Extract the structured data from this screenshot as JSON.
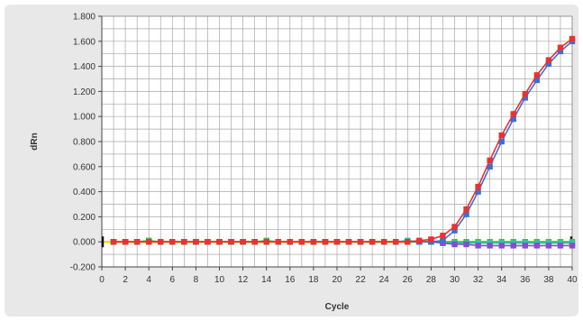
{
  "chart_data": {
    "type": "line",
    "xlabel": "Cycle",
    "ylabel": "dRn",
    "xlim": [
      0,
      40
    ],
    "ylim": [
      -0.2,
      1.8
    ],
    "xticks": [
      0,
      2,
      4,
      6,
      8,
      10,
      12,
      14,
      16,
      18,
      20,
      22,
      24,
      26,
      28,
      30,
      32,
      34,
      36,
      38,
      40
    ],
    "x_tick_labels": [
      "0",
      "2",
      "4",
      "6",
      "8",
      "10",
      "12",
      "14",
      "16",
      "18",
      "20",
      "22",
      "24",
      "26",
      "28",
      "30",
      "32",
      "34",
      "36",
      "38",
      "40"
    ],
    "yticks": [
      -0.2,
      0,
      0.2,
      0.4,
      0.6,
      0.8,
      1.0,
      1.2,
      1.4,
      1.6,
      1.8
    ],
    "y_tick_labels": [
      "-0.200",
      "0.000",
      "0.200",
      "0.400",
      "0.600",
      "0.800",
      "1.000",
      "1.200",
      "1.400",
      "1.600",
      "1.800"
    ],
    "grid": true,
    "legend": "none",
    "threshold": 0.0,
    "colors": {
      "plot_background": "#ffffff",
      "outer_background": "#e8e8e8",
      "grid": "#a8a8a8",
      "threshold": "#e5e500"
    },
    "series": [
      {
        "color": "#e8332f",
        "x": [
          1,
          2,
          3,
          4,
          5,
          6,
          7,
          8,
          9,
          10,
          11,
          12,
          13,
          14,
          15,
          16,
          17,
          18,
          19,
          20,
          21,
          22,
          23,
          24,
          25,
          26,
          27,
          28,
          29,
          30,
          31,
          32,
          33,
          34,
          35,
          36,
          37,
          38,
          39,
          40
        ],
        "values": [
          0,
          0,
          0,
          0,
          0,
          0,
          0,
          0,
          0,
          0,
          0,
          0,
          0,
          0,
          0,
          0,
          0,
          0,
          0,
          0,
          0,
          0,
          0,
          0,
          0,
          0,
          0.01,
          0.02,
          0.05,
          0.12,
          0.26,
          0.44,
          0.65,
          0.85,
          1.02,
          1.18,
          1.33,
          1.45,
          1.55,
          1.62
        ]
      },
      {
        "color": "#3a6fd8",
        "x": [
          1,
          2,
          3,
          4,
          5,
          6,
          7,
          8,
          9,
          10,
          11,
          12,
          13,
          14,
          15,
          16,
          17,
          18,
          19,
          20,
          21,
          22,
          23,
          24,
          25,
          26,
          27,
          28,
          29,
          30,
          31,
          32,
          33,
          34,
          35,
          36,
          37,
          38,
          39,
          40
        ],
        "values": [
          0,
          0,
          0,
          0,
          0,
          0,
          0,
          0,
          0,
          0,
          0,
          0,
          0,
          0,
          0,
          0,
          0,
          0,
          0,
          0,
          0,
          0,
          0,
          0,
          0,
          0,
          0,
          0,
          0.01,
          0.09,
          0.22,
          0.4,
          0.6,
          0.8,
          0.98,
          1.15,
          1.29,
          1.42,
          1.52,
          1.6
        ]
      },
      {
        "color": "#8a4ad0",
        "x": [
          1,
          2,
          3,
          4,
          5,
          6,
          7,
          8,
          9,
          10,
          11,
          12,
          13,
          14,
          15,
          16,
          17,
          18,
          19,
          20,
          21,
          22,
          23,
          24,
          25,
          26,
          27,
          28,
          29,
          30,
          31,
          32,
          33,
          34,
          35,
          36,
          37,
          38,
          39,
          40
        ],
        "values": [
          0,
          0,
          0,
          0,
          0,
          0,
          0,
          0,
          0,
          0,
          0,
          0,
          0,
          0,
          0,
          0,
          0,
          0,
          0,
          0,
          0,
          0,
          0,
          0,
          0,
          0,
          0,
          0,
          -0.01,
          -0.02,
          -0.02,
          -0.03,
          -0.03,
          -0.03,
          -0.03,
          -0.03,
          -0.03,
          -0.03,
          -0.03,
          -0.03
        ]
      },
      {
        "color": "#2ec4a8",
        "x": [
          1,
          2,
          3,
          4,
          5,
          6,
          7,
          8,
          9,
          10,
          11,
          12,
          13,
          14,
          15,
          16,
          17,
          18,
          19,
          20,
          21,
          22,
          23,
          24,
          25,
          26,
          27,
          28,
          29,
          30,
          31,
          32,
          33,
          34,
          35,
          36,
          37,
          38,
          39,
          40
        ],
        "values": [
          0,
          0,
          0,
          0,
          0,
          0,
          0,
          0,
          0,
          0,
          0,
          0,
          0,
          0,
          0,
          0,
          0,
          0,
          0,
          0,
          0,
          0,
          0,
          0,
          0,
          0.01,
          0.0,
          0.0,
          -0.01,
          -0.01,
          -0.01,
          -0.01,
          -0.01,
          -0.01,
          -0.01,
          -0.01,
          -0.01,
          -0.01,
          -0.01,
          -0.01
        ]
      },
      {
        "color": "#3cc43c",
        "x": [
          1,
          2,
          3,
          4,
          5,
          6,
          7,
          8,
          9,
          10,
          11,
          12,
          13,
          14,
          15,
          16,
          17,
          18,
          19,
          20,
          21,
          22,
          23,
          24,
          25,
          26,
          27,
          28,
          29,
          30,
          31,
          32,
          33,
          34,
          35,
          36,
          37,
          38,
          39,
          40
        ],
        "values": [
          0,
          0,
          0,
          0.01,
          0,
          0,
          0,
          0,
          0,
          0,
          0,
          0,
          0,
          0.01,
          0,
          0,
          0,
          0,
          0,
          0,
          0,
          0,
          0,
          0,
          0,
          0,
          0,
          0,
          0,
          0,
          0,
          0,
          0,
          0,
          0,
          0,
          0,
          0,
          0,
          0
        ]
      }
    ]
  }
}
